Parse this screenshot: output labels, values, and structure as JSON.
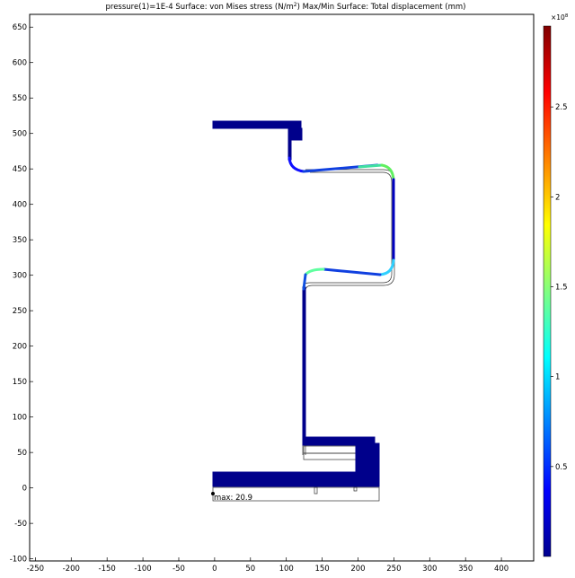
{
  "plot": {
    "title_prefix": "pressure(1)=1E-4   Surface: von Mises stress (N/m",
    "title_sup": "2",
    "title_suffix": ")  Max/Min Surface: Total displacement (mm)",
    "max_label": "max: 20.9"
  },
  "axes": {
    "x_ticks": [
      -250,
      -200,
      -150,
      -100,
      -50,
      0,
      50,
      100,
      150,
      200,
      250,
      300,
      350,
      400
    ],
    "y_ticks": [
      650,
      600,
      550,
      500,
      450,
      400,
      350,
      300,
      250,
      200,
      150,
      100,
      50,
      0,
      -50,
      -100
    ],
    "x_range": [
      -258,
      445
    ],
    "y_range": [
      -103,
      668
    ]
  },
  "colorbar": {
    "exponent_base": "×10",
    "exponent_power": "8",
    "ticks": [
      {
        "label": "2.5",
        "value": 2.5
      },
      {
        "label": "2",
        "value": 2.0
      },
      {
        "label": "1.5",
        "value": 1.5
      },
      {
        "label": "1",
        "value": 1.0
      },
      {
        "label": "0.5",
        "value": 0.5
      }
    ],
    "range": [
      0,
      2.95
    ],
    "colors": [
      "#00008f",
      "#0000ff",
      "#0080ff",
      "#00ffff",
      "#80ff80",
      "#ffff00",
      "#ff8000",
      "#ff0000",
      "#800000"
    ]
  },
  "colors": {
    "structure": "#00008b",
    "outline": "#333333",
    "axis": "#000000"
  }
}
